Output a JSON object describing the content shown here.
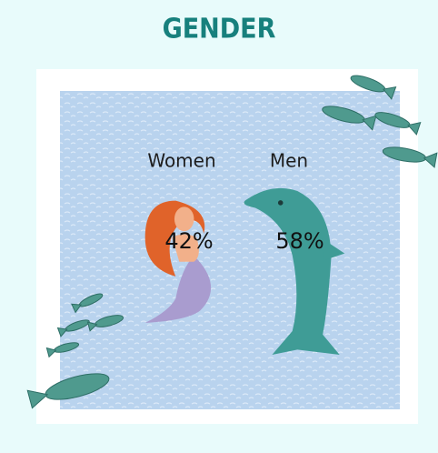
{
  "chart_data": {
    "type": "pictogram",
    "title": "GENDER",
    "categories": [
      "Women",
      "Men"
    ],
    "values": [
      42,
      58
    ],
    "value_labels": [
      "42%",
      "58%"
    ],
    "colors": [
      "#e0632a",
      "#3f9c96"
    ]
  }
}
